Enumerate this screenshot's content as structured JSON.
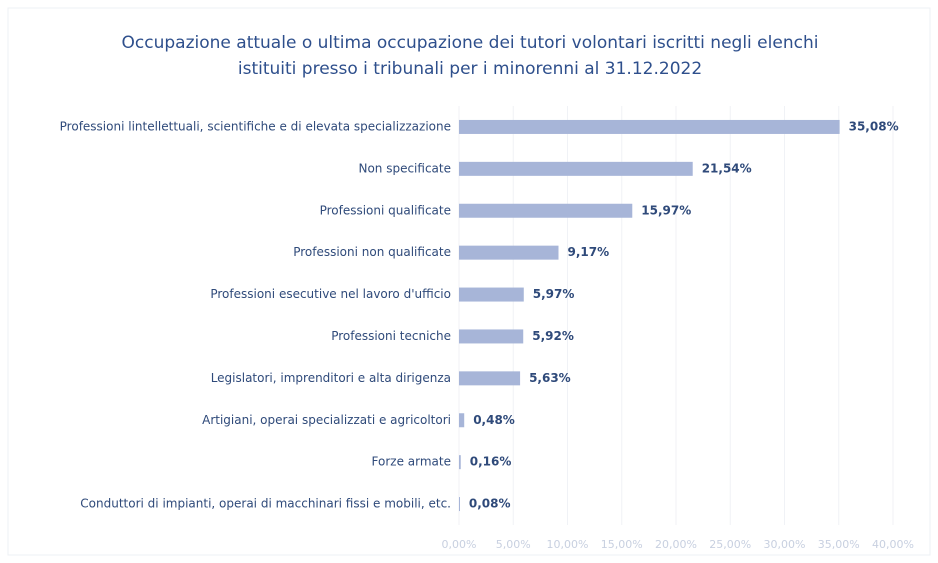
{
  "chart_data": {
    "type": "bar",
    "orientation": "horizontal",
    "title": "Occupazione attuale o ultima occupazione dei tutori volontari iscritti negli elenchi istituiti presso i tribunali per i minorenni al 31.12.2022",
    "categories": [
      "Professioni lintellettuali, scientifiche e di elevata specializzazione",
      "Non specificate",
      "Professioni qualificate",
      "Professioni non qualificate",
      "Professioni esecutive nel lavoro d'ufficio",
      "Professioni tecniche",
      "Legislatori, imprenditori e alta dirigenza",
      "Artigiani, operai specializzati e agricoltori",
      "Forze armate",
      "Conduttori di impianti, operai di macchinari fissi e mobili, etc."
    ],
    "values": [
      35.08,
      21.54,
      15.97,
      9.17,
      5.97,
      5.92,
      5.63,
      0.48,
      0.16,
      0.08
    ],
    "value_labels": [
      "35,08%",
      "21,54%",
      "15,97%",
      "9,17%",
      "5,97%",
      "5,92%",
      "5,63%",
      "0,48%",
      "0,16%",
      "0,08%"
    ],
    "color": "#a7b5d8",
    "xlim": [
      0,
      40
    ],
    "xticks": [
      {
        "value": 0,
        "label": "0,00%"
      },
      {
        "value": 5,
        "label": "5,00%"
      },
      {
        "value": 10,
        "label": "10,00%"
      },
      {
        "value": 15,
        "label": "15,00%"
      },
      {
        "value": 20,
        "label": "20,00%"
      },
      {
        "value": 25,
        "label": "25,00%"
      },
      {
        "value": 30,
        "label": "30,00%"
      },
      {
        "value": 35,
        "label": "35,00%"
      },
      {
        "value": 40,
        "label": "40,00%"
      }
    ],
    "grid": true
  }
}
